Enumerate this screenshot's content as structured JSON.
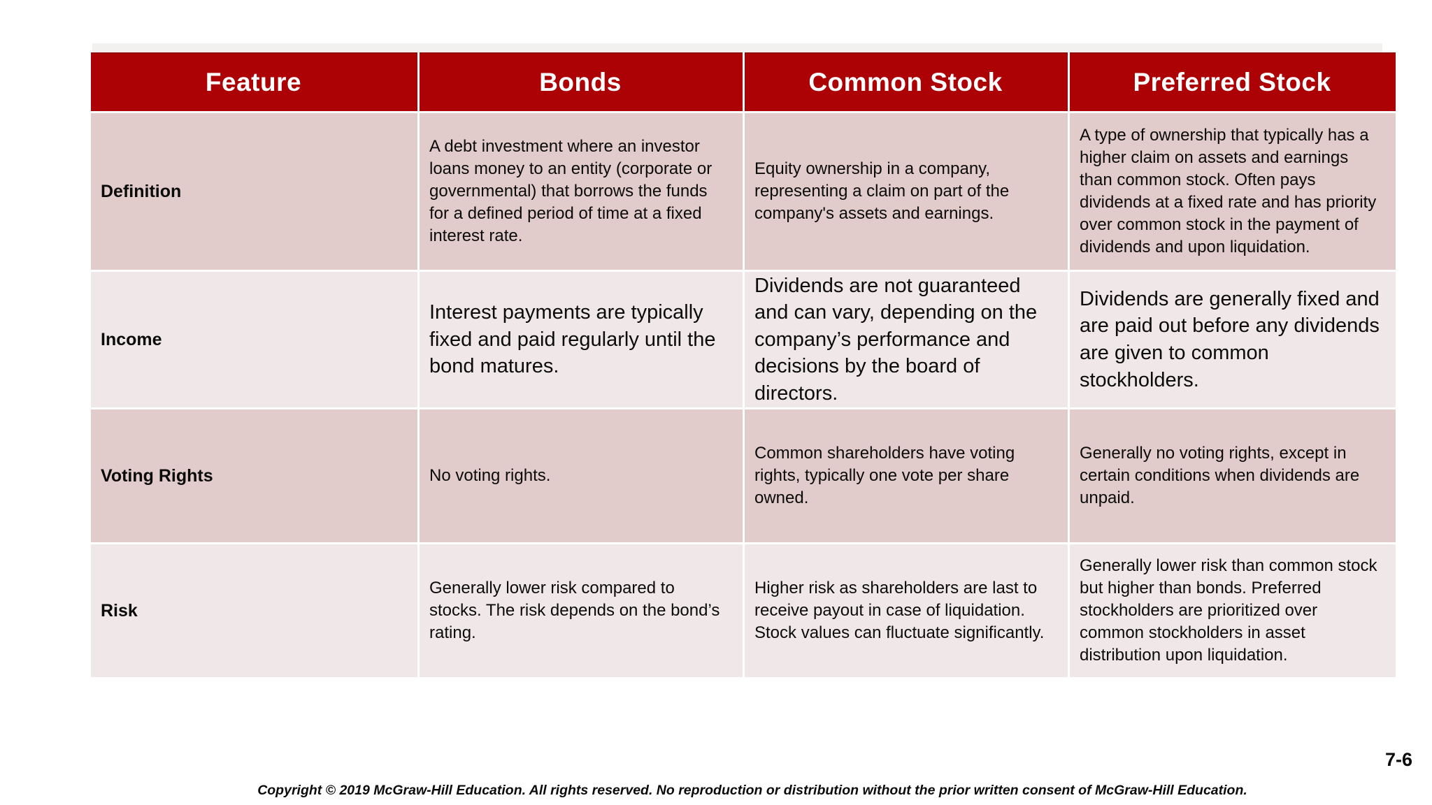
{
  "page": {
    "page_number": "7-6",
    "copyright": "Copyright © 2019 McGraw-Hill Education. All rights reserved. No reproduction or distribution without the prior written consent of McGraw-Hill Education."
  },
  "colors": {
    "header_bg": "#ac0205",
    "header_text": "#ffffff",
    "row_odd_bg": "#e2cbcb",
    "row_even_bg": "#f0e8e8",
    "grid_line": "#ffffff",
    "body_text": "#0b0b0b"
  },
  "table": {
    "columns": [
      "Feature",
      "Bonds",
      "Common Stock",
      "Preferred Stock"
    ],
    "rows": [
      {
        "feature": "Definition",
        "bonds": "A debt investment where an investor loans money to an entity (corporate or governmental) that borrows the funds for a defined period of time at a fixed interest rate.",
        "common_stock": "Equity ownership in a company, representing a claim on part of the company's assets and earnings.",
        "preferred_stock": "A type of ownership that typically has a higher claim on assets and earnings than common stock. Often pays dividends at a fixed rate and has priority over common stock in the payment of dividends and upon liquidation."
      },
      {
        "feature": "Income",
        "bonds": "Interest payments are typically fixed and paid regularly until the bond matures.",
        "common_stock": "Dividends are not guaranteed and can vary, depending on the company’s performance and decisions by the board of directors.",
        "preferred_stock": "Dividends are generally fixed and are paid out before any dividends are given to common stockholders."
      },
      {
        "feature": "Voting Rights",
        "bonds": "No voting rights.",
        "common_stock": "Common shareholders have voting rights, typically one vote per share owned.",
        "preferred_stock": "Generally no voting rights, except in certain conditions when dividends are unpaid."
      },
      {
        "feature": "Risk",
        "bonds": "Generally lower risk compared to stocks. The risk depends on the bond’s rating.",
        "common_stock": "Higher risk as shareholders are last to receive payout in case of liquidation. Stock values can fluctuate significantly.",
        "preferred_stock": "Generally lower risk than common stock but higher than bonds. Preferred stockholders are prioritized over common stockholders in asset distribution upon liquidation."
      }
    ]
  }
}
